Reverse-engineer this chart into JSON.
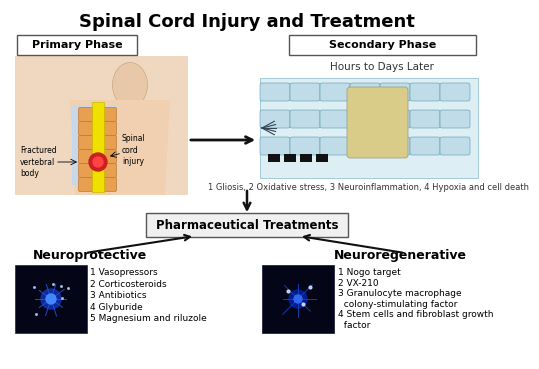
{
  "title": "Spinal Cord Injury and Treatment",
  "title_fontsize": 13,
  "title_fontweight": "bold",
  "bg_color": "#ffffff",
  "primary_phase_label": "Primary Phase",
  "secondary_phase_label": "Secondary Phase",
  "hours_later_label": "Hours to Days Later",
  "secondary_caption": "1 Gliosis, 2 Oxidative stress, 3 Neuroinflammation, 4 Hypoxia and cell death",
  "pharma_label": "Pharmaceutical Treatments",
  "neuroprotective_label": "Neuroprotective",
  "neuroregenerative_label": "Neuroregenerative",
  "neuroprotective_items": [
    "1 Vasopressors",
    "2 Corticosteroids",
    "3 Antibiotics",
    "4 Glyburide",
    "5 Magnesium and riluzole"
  ],
  "neuroregenerative_items": [
    "1 Nogo target",
    "2 VX-210",
    "3 Granulocyte macrophage",
    "  colony-stimulating factor",
    "4 Stem cells and fibroblast growth",
    "  factor"
  ],
  "label_frac_vert": "Fractured\nvertebral\nbody",
  "label_spinal": "Spinal\ncord\ninjury",
  "box_edge_color": "#555555",
  "arrow_color": "#111111",
  "caption_fontsize": 6,
  "item_fontsize": 6.5,
  "section_fontsize": 9,
  "section_fontweight": "bold",
  "phase_fontsize": 8,
  "hours_fontsize": 7.5
}
